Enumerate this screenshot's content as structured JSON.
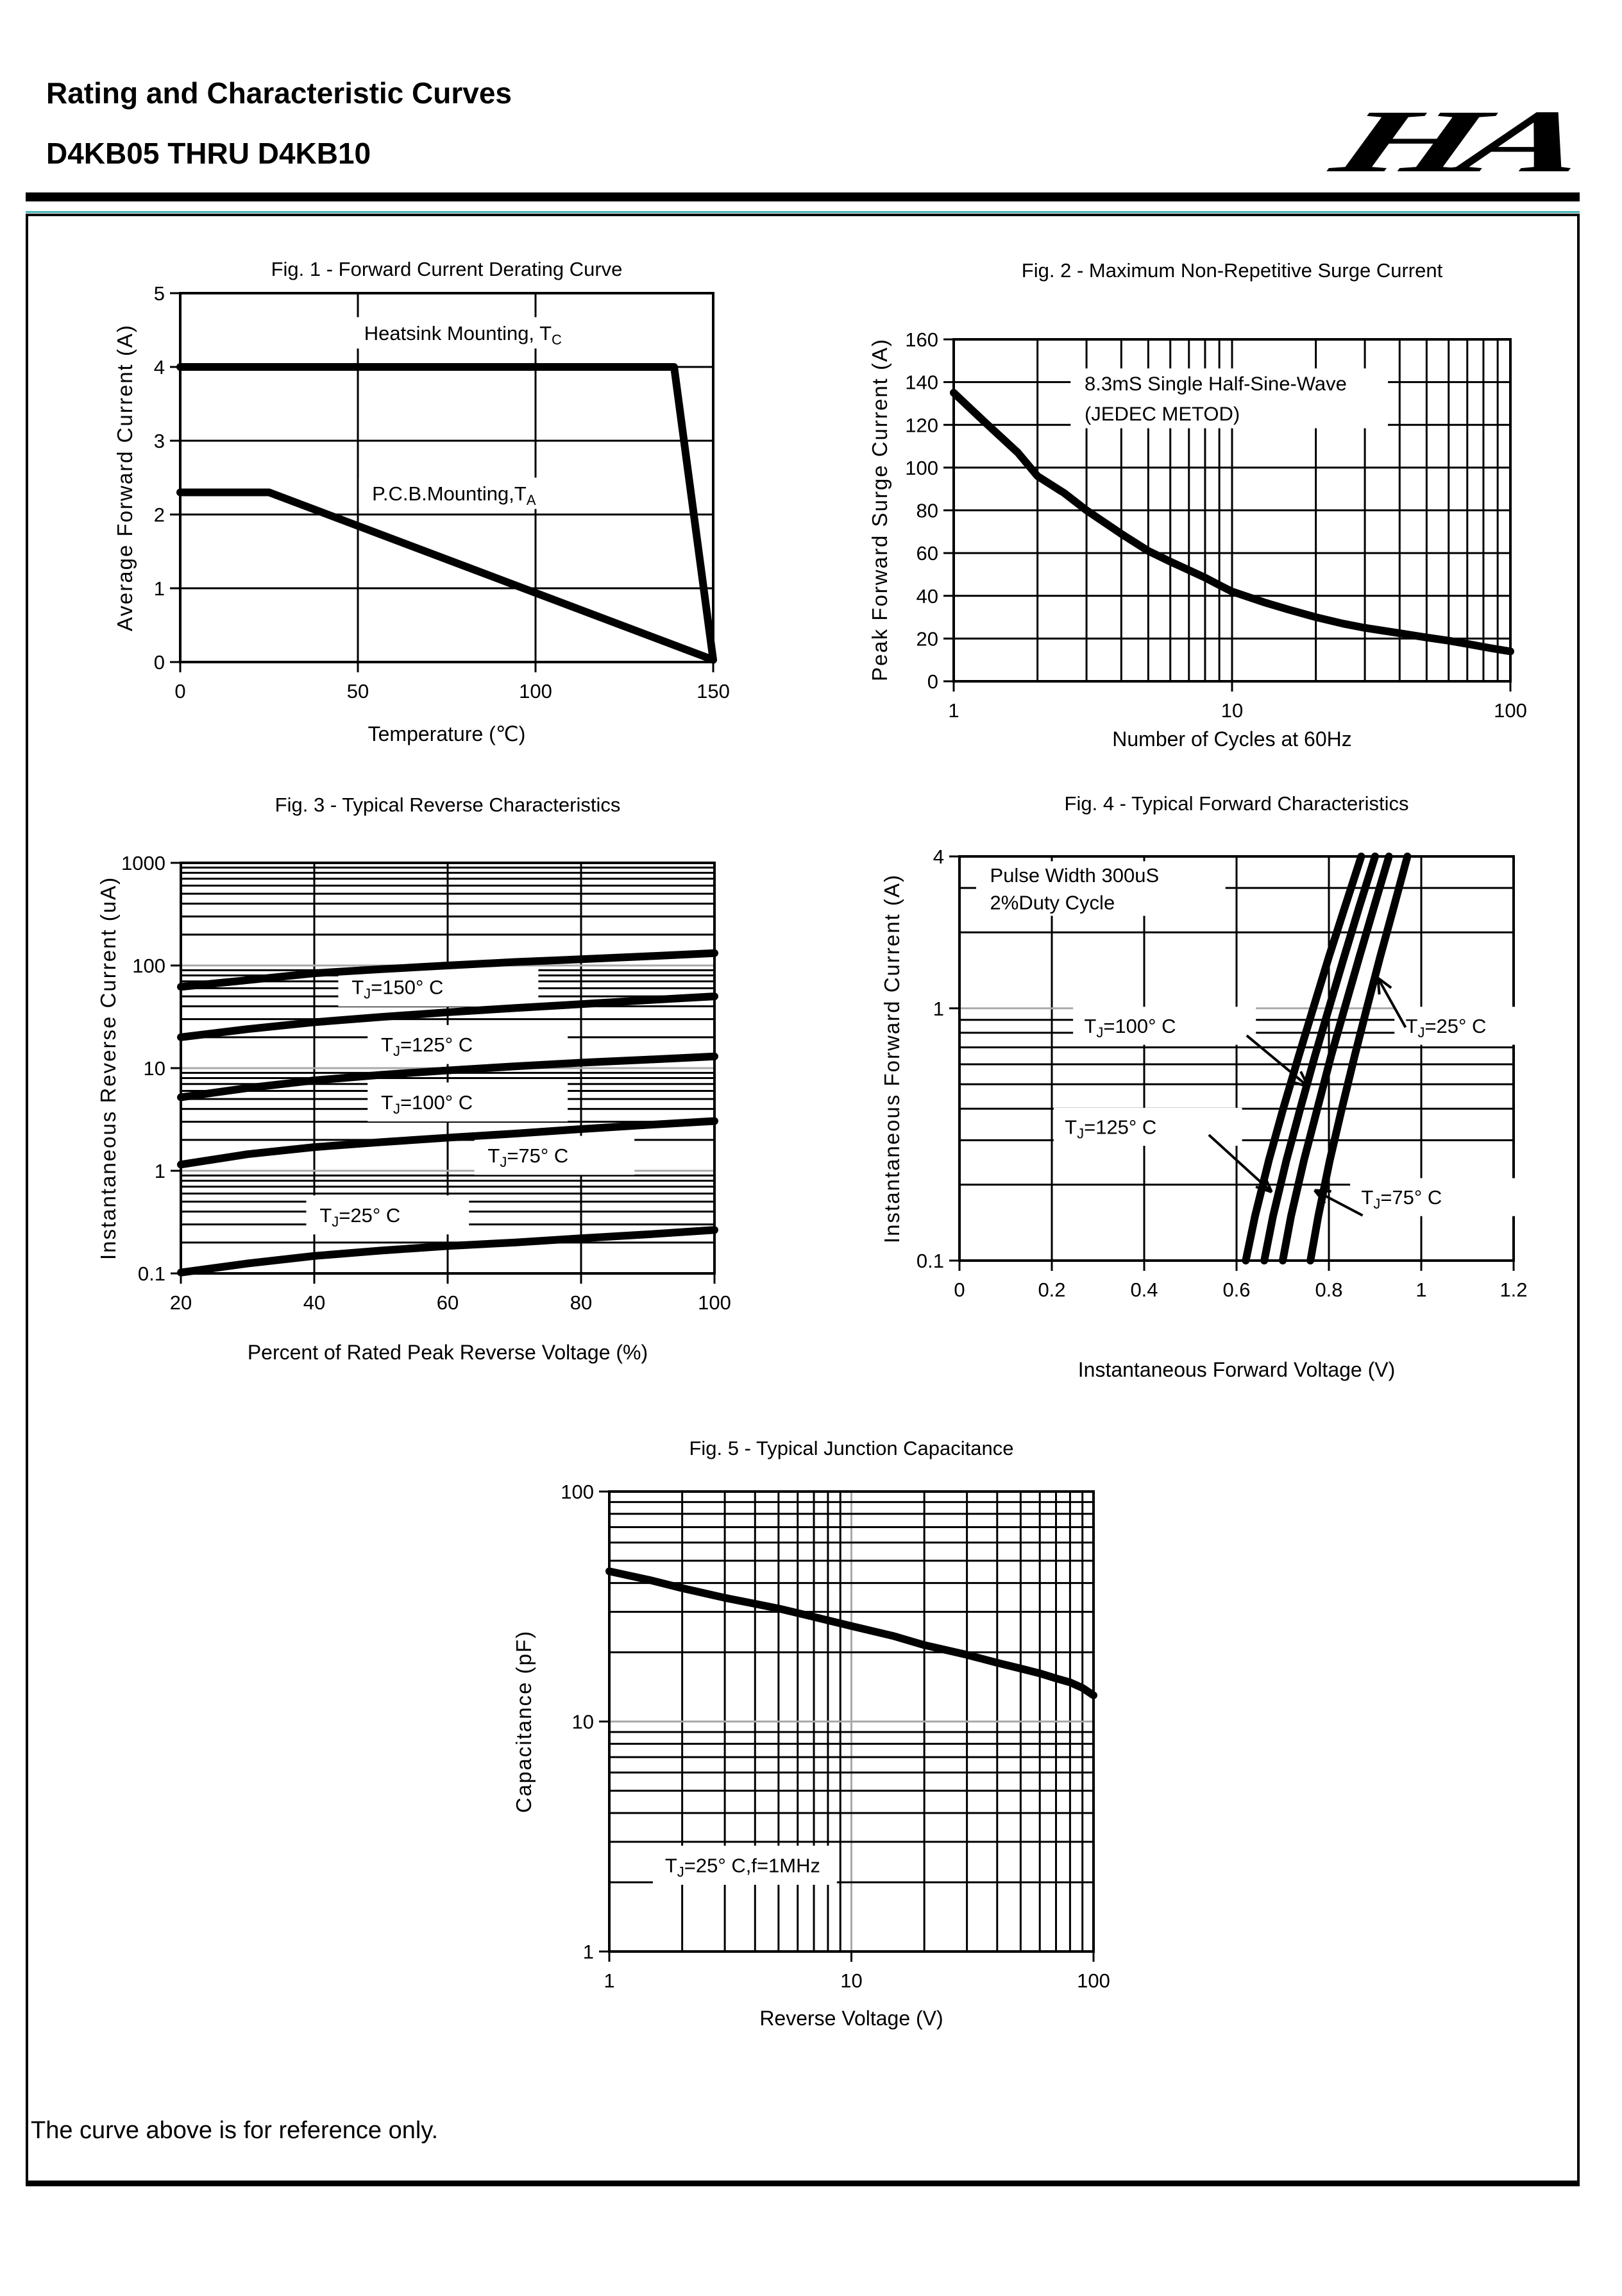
{
  "header": {
    "title": "Rating and Characteristic Curves",
    "part_number": "D4KB05 THRU D4KB10",
    "logo_text": "HA"
  },
  "page": {
    "footer_note": "The curve above is for reference only."
  },
  "colors": {
    "ink": "#000000",
    "grid_major_gray": "#a9a9a9",
    "teal_rule": "#49b5b5",
    "background": "#ffffff"
  },
  "chart_data": [
    {
      "id": "fig1",
      "type": "line",
      "title": "Fig. 1 - Forward Current Derating Curve",
      "xlabel": "Temperature (℃)",
      "ylabel": "Average Forward Current (A)",
      "x": {
        "scale": "linear",
        "min": 0,
        "max": 150,
        "ticks": [
          0,
          50,
          100,
          150
        ],
        "tick_labels": [
          "0",
          "50",
          "100",
          "150"
        ],
        "grid": [
          50,
          100
        ]
      },
      "y": {
        "scale": "linear",
        "min": 0,
        "max": 5,
        "ticks": [
          0,
          1,
          2,
          3,
          4,
          5
        ],
        "tick_labels": [
          "0",
          "1",
          "2",
          "3",
          "4",
          "5"
        ],
        "grid": [
          1,
          2,
          3,
          4
        ]
      },
      "series": [
        {
          "name": "Heatsink Mounting, TC",
          "points": [
            [
              0,
              4
            ],
            [
              139,
              4
            ],
            [
              150,
              0.03
            ]
          ]
        },
        {
          "name": "P.C.B.Mounting,TA",
          "points": [
            [
              0,
              2.3
            ],
            [
              25,
              2.3
            ],
            [
              150,
              0.03
            ]
          ]
        }
      ],
      "annotations": [
        {
          "lines": [
            "Heatsink Mounting, T~C~"
          ],
          "x": 0.32,
          "y": 0.065,
          "w": 0.46,
          "h": 0.085,
          "text_x": 0.345
        },
        {
          "lines": [
            "P.C.B.Mounting,T~A~"
          ],
          "x": 0.335,
          "y": 0.5,
          "w": 0.4,
          "h": 0.085,
          "text_x": 0.36
        }
      ]
    },
    {
      "id": "fig2",
      "type": "line",
      "title": "Fig. 2 - Maximum Non-Repetitive Surge Current",
      "xlabel": "Number of Cycles at 60Hz",
      "ylabel": "Peak Forward Surge Current (A)",
      "x": {
        "scale": "log",
        "min": 1,
        "max": 100,
        "ticks": [
          1,
          10,
          100
        ],
        "tick_labels": [
          "1",
          "10",
          "100"
        ],
        "major_gray": false
      },
      "y": {
        "scale": "linear",
        "min": 0,
        "max": 160,
        "ticks": [
          0,
          20,
          40,
          60,
          80,
          100,
          120,
          140,
          160
        ],
        "tick_labels": [
          "0",
          "20",
          "40",
          "60",
          "80",
          "100",
          "120",
          "140",
          "160"
        ],
        "grid": [
          20,
          40,
          60,
          80,
          100,
          120,
          140
        ]
      },
      "series": [
        {
          "name": "8.3mS Single Half-Sine-Wave (JEDEC METOD)",
          "points": [
            [
              1,
              135
            ],
            [
              1.3,
              121
            ],
            [
              1.7,
              107
            ],
            [
              2,
              96
            ],
            [
              2.5,
              88
            ],
            [
              3,
              80
            ],
            [
              4,
              69
            ],
            [
              5,
              61
            ],
            [
              6,
              56
            ],
            [
              7,
              52
            ],
            [
              8,
              48.5
            ],
            [
              9,
              45
            ],
            [
              10,
              42
            ],
            [
              13,
              37
            ],
            [
              16,
              33.5
            ],
            [
              20,
              30
            ],
            [
              25,
              27
            ],
            [
              30,
              25
            ],
            [
              40,
              22.5
            ],
            [
              50,
              20.5
            ],
            [
              60,
              19
            ],
            [
              70,
              17.5
            ],
            [
              85,
              15.5
            ],
            [
              100,
              14
            ]
          ]
        }
      ],
      "annotations": [
        {
          "lines": [
            "8.3mS Single Half-Sine-Wave",
            "(JEDEC METOD)"
          ],
          "x": 0.21,
          "y": 0.085,
          "w": 0.57,
          "h": 0.175,
          "text_x": 0.235
        }
      ]
    },
    {
      "id": "fig3",
      "type": "line",
      "title": "Fig. 3 - Typical Reverse Characteristics",
      "xlabel": "Percent of Rated Peak Reverse Voltage (%)",
      "ylabel": "Instantaneous Reverse Current (uA)",
      "x": {
        "scale": "linear",
        "min": 20,
        "max": 100,
        "ticks": [
          20,
          40,
          60,
          80,
          100
        ],
        "tick_labels": [
          "20",
          "40",
          "60",
          "80",
          "100"
        ],
        "grid": [
          40,
          60,
          80
        ]
      },
      "y": {
        "scale": "log",
        "min": 0.1,
        "max": 1000,
        "ticks": [
          0.1,
          1,
          10,
          100,
          1000
        ],
        "tick_labels": [
          "0.1",
          "1",
          "10",
          "100",
          "1000"
        ],
        "major_gray": true
      },
      "series": [
        {
          "name": "TJ=150° C",
          "points": [
            [
              20,
              62
            ],
            [
              30,
              72
            ],
            [
              40,
              84
            ],
            [
              50,
              92
            ],
            [
              60,
              100
            ],
            [
              70,
              108
            ],
            [
              80,
              115
            ],
            [
              90,
              123
            ],
            [
              100,
              132
            ]
          ]
        },
        {
          "name": "TJ=125° C",
          "points": [
            [
              20,
              20
            ],
            [
              30,
              24
            ],
            [
              40,
              28
            ],
            [
              50,
              31.5
            ],
            [
              60,
              35
            ],
            [
              70,
              38.5
            ],
            [
              80,
              42
            ],
            [
              90,
              46
            ],
            [
              100,
              50
            ]
          ]
        },
        {
          "name": "TJ=100° C",
          "points": [
            [
              20,
              5.2
            ],
            [
              30,
              6.4
            ],
            [
              40,
              7.6
            ],
            [
              50,
              8.6
            ],
            [
              60,
              9.5
            ],
            [
              70,
              10.4
            ],
            [
              80,
              11.3
            ],
            [
              90,
              12.1
            ],
            [
              100,
              13
            ]
          ]
        },
        {
          "name": "TJ=75° C",
          "points": [
            [
              20,
              1.15
            ],
            [
              30,
              1.45
            ],
            [
              40,
              1.7
            ],
            [
              50,
              1.9
            ],
            [
              60,
              2.1
            ],
            [
              70,
              2.3
            ],
            [
              80,
              2.55
            ],
            [
              90,
              2.8
            ],
            [
              100,
              3.05
            ]
          ]
        },
        {
          "name": "TJ=25° C",
          "points": [
            [
              20,
              0.102
            ],
            [
              30,
              0.125
            ],
            [
              40,
              0.148
            ],
            [
              50,
              0.167
            ],
            [
              60,
              0.185
            ],
            [
              70,
              0.2
            ],
            [
              80,
              0.22
            ],
            [
              90,
              0.24
            ],
            [
              100,
              0.265
            ]
          ]
        }
      ],
      "annotations": [
        {
          "lines": [
            "T~J~=150°  C"
          ],
          "x": 0.295,
          "y": 0.255,
          "w": 0.375,
          "h": 0.095,
          "text_x": 0.32
        },
        {
          "lines": [
            "T~J~=125°  C"
          ],
          "x": 0.35,
          "y": 0.395,
          "w": 0.375,
          "h": 0.095,
          "text_x": 0.375
        },
        {
          "lines": [
            "T~J~=100°  C"
          ],
          "x": 0.35,
          "y": 0.535,
          "w": 0.375,
          "h": 0.095,
          "text_x": 0.375
        },
        {
          "lines": [
            "T~J~=75°  C"
          ],
          "x": 0.55,
          "y": 0.665,
          "w": 0.3,
          "h": 0.095,
          "text_x": 0.575
        },
        {
          "lines": [
            "T~J~=25°  C"
          ],
          "x": 0.235,
          "y": 0.81,
          "w": 0.305,
          "h": 0.095,
          "text_x": 0.26
        }
      ]
    },
    {
      "id": "fig4",
      "type": "line",
      "title": "Fig. 4 - Typical Forward Characteristics",
      "xlabel": "Instantaneous Forward Voltage (V)",
      "ylabel": "Instantaneous Forward Current (A)",
      "x": {
        "scale": "linear",
        "min": 0,
        "max": 1.2,
        "ticks": [
          0,
          0.2,
          0.4,
          0.6,
          0.8,
          1,
          1.2
        ],
        "tick_labels": [
          "0",
          "0.2",
          "0.4",
          "0.6",
          "0.8",
          "1",
          "1.2"
        ],
        "grid": [
          0.2,
          0.4,
          0.6,
          0.8,
          1
        ]
      },
      "y": {
        "scale": "log",
        "min": 0.1,
        "max": 4,
        "ticks": [
          0.1,
          1,
          4
        ],
        "tick_labels": [
          "0.1",
          "1",
          "4"
        ],
        "major_gray": true
      },
      "series": [
        {
          "name": "TJ=125° C",
          "points": [
            [
              0.62,
              0.1
            ],
            [
              0.64,
              0.15
            ],
            [
              0.67,
              0.25
            ],
            [
              0.701,
              0.4
            ],
            [
              0.735,
              0.65
            ],
            [
              0.766,
              1.0
            ],
            [
              0.8,
              1.6
            ],
            [
              0.834,
              2.5
            ],
            [
              0.87,
              4
            ]
          ]
        },
        {
          "name": "TJ=100° C",
          "points": [
            [
              0.66,
              0.1
            ],
            [
              0.679,
              0.15
            ],
            [
              0.708,
              0.25
            ],
            [
              0.738,
              0.4
            ],
            [
              0.77,
              0.65
            ],
            [
              0.8,
              1.0
            ],
            [
              0.833,
              1.6
            ],
            [
              0.865,
              2.5
            ],
            [
              0.9,
              4
            ]
          ]
        },
        {
          "name": "TJ=75° C",
          "points": [
            [
              0.7,
              0.1
            ],
            [
              0.718,
              0.15
            ],
            [
              0.746,
              0.25
            ],
            [
              0.775,
              0.4
            ],
            [
              0.805,
              0.65
            ],
            [
              0.834,
              1.0
            ],
            [
              0.866,
              1.6
            ],
            [
              0.897,
              2.5
            ],
            [
              0.93,
              4
            ]
          ]
        },
        {
          "name": "TJ=25° C",
          "points": [
            [
              0.76,
              0.1
            ],
            [
              0.777,
              0.15
            ],
            [
              0.802,
              0.25
            ],
            [
              0.828,
              0.4
            ],
            [
              0.856,
              0.65
            ],
            [
              0.882,
              1.0
            ],
            [
              0.911,
              1.6
            ],
            [
              0.94,
              2.5
            ],
            [
              0.97,
              4
            ]
          ]
        }
      ],
      "annotations": [
        {
          "lines": [
            "Pulse Width 300uS",
            "2%Duty Cycle"
          ],
          "x": 0.03,
          "y": 0.012,
          "w": 0.45,
          "h": 0.135,
          "text_x": 0.055
        },
        {
          "lines": [
            "T~J~=100°  C"
          ],
          "x": 0.205,
          "y": 0.372,
          "w": 0.33,
          "h": 0.094,
          "text_x": 0.225
        },
        {
          "lines": [
            "T~J~=25°  C"
          ],
          "x": 0.785,
          "y": 0.372,
          "w": 0.285,
          "h": 0.094,
          "text_x": 0.805
        },
        {
          "lines": [
            "T~J~=125°  C"
          ],
          "x": 0.17,
          "y": 0.622,
          "w": 0.34,
          "h": 0.094,
          "text_x": 0.19
        },
        {
          "lines": [
            "T~J~=75°  C"
          ],
          "x": 0.705,
          "y": 0.796,
          "w": 0.3,
          "h": 0.094,
          "text_x": 0.725
        }
      ],
      "arrows": [
        [
          [
            0.622,
            0.78
          ],
          [
            0.755,
            0.49
          ]
        ],
        [
          [
            0.966,
            0.84
          ],
          [
            0.906,
            1.32
          ]
        ],
        [
          [
            0.54,
            0.315
          ],
          [
            0.676,
            0.187
          ]
        ],
        [
          [
            0.873,
            0.151
          ],
          [
            0.769,
            0.19
          ]
        ]
      ]
    },
    {
      "id": "fig5",
      "type": "line",
      "title": "Fig.  5 - Typical Junction Capacitance",
      "xlabel": "Reverse Voltage (V)",
      "ylabel": "Capacitance (pF)",
      "x": {
        "scale": "log",
        "min": 1,
        "max": 100,
        "ticks": [
          1,
          10,
          100
        ],
        "tick_labels": [
          "1",
          "10",
          "100"
        ],
        "major_gray": true
      },
      "y": {
        "scale": "log",
        "min": 1,
        "max": 100,
        "ticks": [
          1,
          10,
          100
        ],
        "tick_labels": [
          "1",
          "10",
          "100"
        ],
        "major_gray": true
      },
      "series": [
        {
          "name": "TJ=25° C,f=1MHz",
          "points": [
            [
              1,
              45
            ],
            [
              1.5,
              41
            ],
            [
              2,
              38
            ],
            [
              3,
              34.5
            ],
            [
              4,
              32.5
            ],
            [
              5,
              31
            ],
            [
              7,
              28.5
            ],
            [
              10,
              26
            ],
            [
              15,
              23.5
            ],
            [
              20,
              21.5
            ],
            [
              30,
              19.5
            ],
            [
              40,
              18
            ],
            [
              50,
              17
            ],
            [
              60,
              16.2
            ],
            [
              70,
              15.4
            ],
            [
              80,
              14.8
            ],
            [
              90,
              14
            ],
            [
              100,
              13
            ]
          ]
        }
      ],
      "annotations": [
        {
          "lines": [
            "T~J~=25°  C,f=1MHz"
          ],
          "x": 0.09,
          "y": 0.77,
          "w": 0.38,
          "h": 0.085,
          "text_x": 0.115
        }
      ]
    }
  ]
}
